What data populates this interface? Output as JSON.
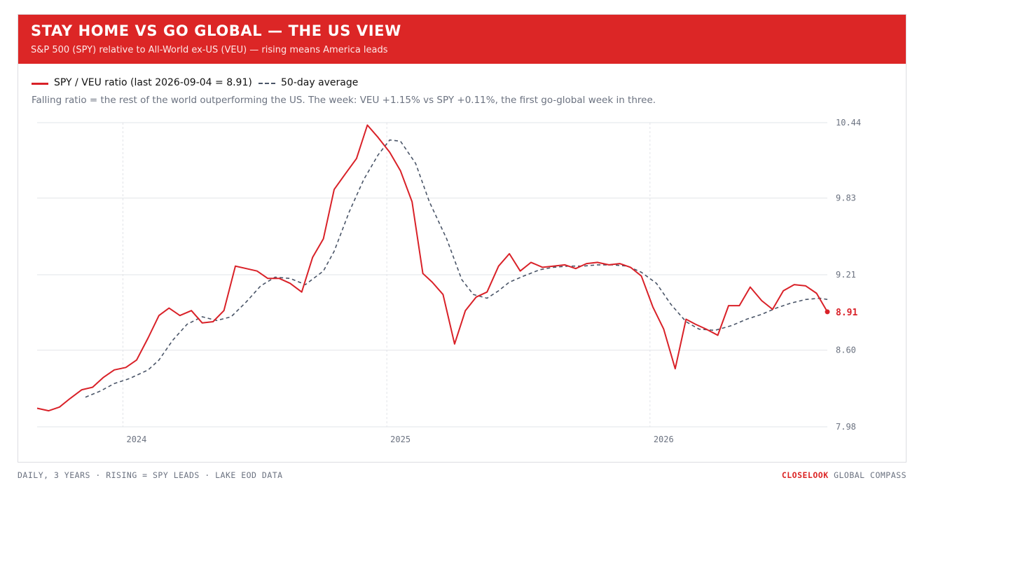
{
  "header": {
    "title": "STAY HOME VS GO GLOBAL — THE US VIEW",
    "subtitle": "S&P 500 (SPY) relative to All-World ex-US (VEU) — rising means America leads"
  },
  "note": "Falling ratio = the rest of the world outperforming the US. The week: VEU +1.15% vs SPY +0.11%, the first go-global week in three.",
  "footer": {
    "left": "DAILY, 3 YEARS · RISING = SPY LEADS · LAKE EOD DATA",
    "brand": "CLOSELOOK",
    "right": "GLOBAL COMPASS"
  },
  "colors": {
    "ratio": "#d92128",
    "average": "#4a5568",
    "banner": "#dc2626",
    "grid": "#e2e4e8",
    "axis_text": "#6b7280"
  },
  "chart_data": {
    "type": "line",
    "ylim": [
      7.98,
      10.44
    ],
    "yticks": [
      "10.44",
      "9.83",
      "9.21",
      "8.60",
      "7.98"
    ],
    "xticks": [
      "2024",
      "2025",
      "2026"
    ],
    "x_start": "2023-09-04",
    "x_end": "2026-09-04",
    "last_value_label": "8.91",
    "series": [
      {
        "name": "SPY / VEU ratio (last 2026-09-04 = 8.91)",
        "style": "solid",
        "points": [
          [
            "2023-09-04",
            8.13
          ],
          [
            "2023-09-20",
            8.11
          ],
          [
            "2023-10-05",
            8.14
          ],
          [
            "2023-10-20",
            8.21
          ],
          [
            "2023-11-05",
            8.28
          ],
          [
            "2023-11-20",
            8.3
          ],
          [
            "2023-12-05",
            8.38
          ],
          [
            "2023-12-20",
            8.44
          ],
          [
            "2024-01-05",
            8.46
          ],
          [
            "2024-01-20",
            8.52
          ],
          [
            "2024-02-05",
            8.7
          ],
          [
            "2024-02-20",
            8.88
          ],
          [
            "2024-03-05",
            8.94
          ],
          [
            "2024-03-20",
            8.88
          ],
          [
            "2024-04-05",
            8.92
          ],
          [
            "2024-04-20",
            8.82
          ],
          [
            "2024-05-05",
            8.83
          ],
          [
            "2024-05-20",
            8.92
          ],
          [
            "2024-06-05",
            9.28
          ],
          [
            "2024-06-20",
            9.26
          ],
          [
            "2024-07-05",
            9.24
          ],
          [
            "2024-07-20",
            9.18
          ],
          [
            "2024-08-05",
            9.18
          ],
          [
            "2024-08-20",
            9.14
          ],
          [
            "2024-09-05",
            9.07
          ],
          [
            "2024-09-20",
            9.35
          ],
          [
            "2024-10-05",
            9.5
          ],
          [
            "2024-10-20",
            9.9
          ],
          [
            "2024-11-05",
            10.03
          ],
          [
            "2024-11-20",
            10.15
          ],
          [
            "2024-12-05",
            10.42
          ],
          [
            "2024-12-20",
            10.32
          ],
          [
            "2025-01-05",
            10.2
          ],
          [
            "2025-01-20",
            10.05
          ],
          [
            "2025-02-05",
            9.8
          ],
          [
            "2025-02-20",
            9.22
          ],
          [
            "2025-03-05",
            9.15
          ],
          [
            "2025-03-20",
            9.05
          ],
          [
            "2025-04-05",
            8.65
          ],
          [
            "2025-04-20",
            8.92
          ],
          [
            "2025-05-05",
            9.03
          ],
          [
            "2025-05-20",
            9.07
          ],
          [
            "2025-06-05",
            9.28
          ],
          [
            "2025-06-20",
            9.38
          ],
          [
            "2025-07-05",
            9.24
          ],
          [
            "2025-07-20",
            9.31
          ],
          [
            "2025-08-05",
            9.27
          ],
          [
            "2025-08-20",
            9.28
          ],
          [
            "2025-09-05",
            9.29
          ],
          [
            "2025-09-20",
            9.26
          ],
          [
            "2025-10-05",
            9.3
          ],
          [
            "2025-10-20",
            9.31
          ],
          [
            "2025-11-05",
            9.29
          ],
          [
            "2025-11-20",
            9.3
          ],
          [
            "2025-12-05",
            9.27
          ],
          [
            "2025-12-20",
            9.2
          ],
          [
            "2026-01-05",
            8.95
          ],
          [
            "2026-01-20",
            8.77
          ],
          [
            "2026-02-05",
            8.45
          ],
          [
            "2026-02-20",
            8.85
          ],
          [
            "2026-03-05",
            8.81
          ],
          [
            "2026-03-20",
            8.77
          ],
          [
            "2026-04-05",
            8.72
          ],
          [
            "2026-04-20",
            8.96
          ],
          [
            "2026-05-05",
            8.96
          ],
          [
            "2026-05-20",
            9.11
          ],
          [
            "2026-06-05",
            9.0
          ],
          [
            "2026-06-20",
            8.93
          ],
          [
            "2026-07-05",
            9.08
          ],
          [
            "2026-07-20",
            9.13
          ],
          [
            "2026-08-05",
            9.12
          ],
          [
            "2026-08-20",
            9.06
          ],
          [
            "2026-09-04",
            8.91
          ]
        ]
      },
      {
        "name": "50-day average",
        "style": "dashed",
        "points": [
          [
            "2023-11-10",
            8.22
          ],
          [
            "2023-12-01",
            8.27
          ],
          [
            "2023-12-20",
            8.33
          ],
          [
            "2024-01-10",
            8.37
          ],
          [
            "2024-02-05",
            8.44
          ],
          [
            "2024-02-20",
            8.52
          ],
          [
            "2024-03-10",
            8.68
          ],
          [
            "2024-03-30",
            8.81
          ],
          [
            "2024-04-20",
            8.87
          ],
          [
            "2024-05-10",
            8.84
          ],
          [
            "2024-05-30",
            8.87
          ],
          [
            "2024-06-20",
            8.99
          ],
          [
            "2024-07-10",
            9.12
          ],
          [
            "2024-07-30",
            9.19
          ],
          [
            "2024-08-20",
            9.18
          ],
          [
            "2024-09-10",
            9.13
          ],
          [
            "2024-10-05",
            9.24
          ],
          [
            "2024-10-20",
            9.4
          ],
          [
            "2024-11-10",
            9.72
          ],
          [
            "2024-11-30",
            9.98
          ],
          [
            "2024-12-20",
            10.18
          ],
          [
            "2025-01-05",
            10.3
          ],
          [
            "2025-01-20",
            10.29
          ],
          [
            "2025-02-10",
            10.11
          ],
          [
            "2025-03-01",
            9.8
          ],
          [
            "2025-03-25",
            9.5
          ],
          [
            "2025-04-15",
            9.17
          ],
          [
            "2025-05-01",
            9.05
          ],
          [
            "2025-05-20",
            9.02
          ],
          [
            "2025-06-05",
            9.08
          ],
          [
            "2025-06-20",
            9.15
          ],
          [
            "2025-07-10",
            9.2
          ],
          [
            "2025-08-01",
            9.25
          ],
          [
            "2025-08-20",
            9.27
          ],
          [
            "2025-09-10",
            9.28
          ],
          [
            "2025-09-30",
            9.28
          ],
          [
            "2025-10-20",
            9.29
          ],
          [
            "2025-11-10",
            9.29
          ],
          [
            "2025-12-01",
            9.28
          ],
          [
            "2025-12-20",
            9.23
          ],
          [
            "2026-01-10",
            9.14
          ],
          [
            "2026-01-30",
            8.97
          ],
          [
            "2026-02-20",
            8.83
          ],
          [
            "2026-03-10",
            8.77
          ],
          [
            "2026-04-01",
            8.76
          ],
          [
            "2026-04-25",
            8.8
          ],
          [
            "2026-05-15",
            8.85
          ],
          [
            "2026-06-05",
            8.89
          ],
          [
            "2026-06-25",
            8.94
          ],
          [
            "2026-07-15",
            8.98
          ],
          [
            "2026-08-05",
            9.01
          ],
          [
            "2026-08-25",
            9.02
          ],
          [
            "2026-09-04",
            9.01
          ]
        ]
      }
    ],
    "legend": "top-left",
    "grid": true
  }
}
